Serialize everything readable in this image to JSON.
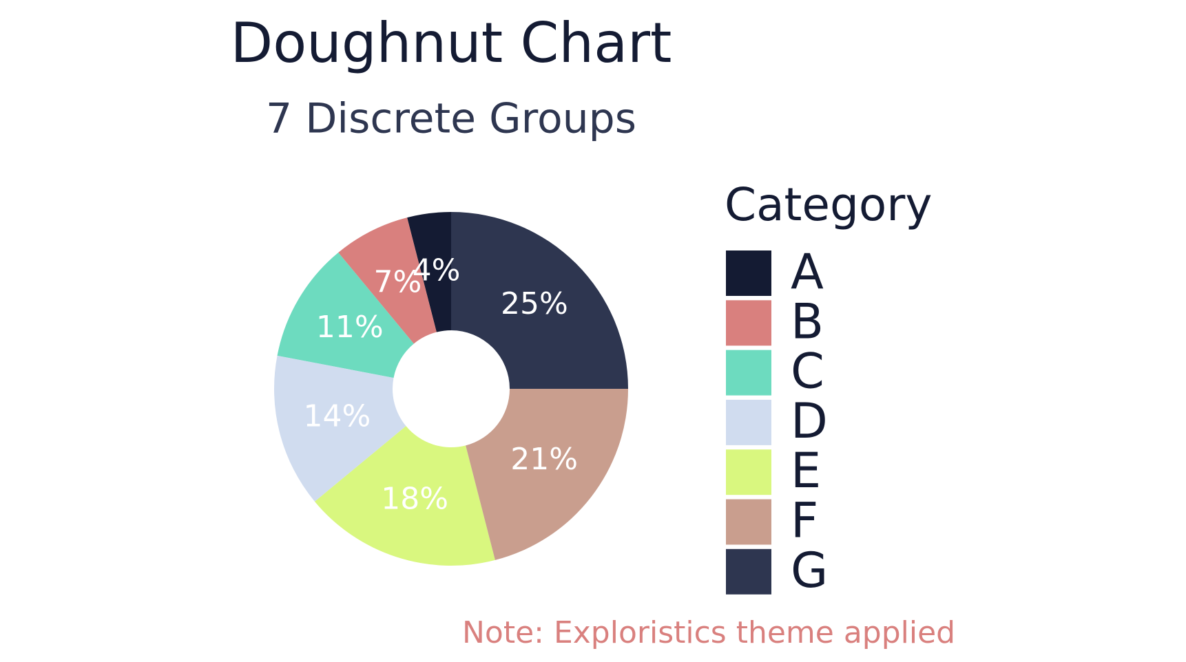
{
  "chart_data": {
    "type": "doughnut",
    "title": "Doughnut Chart",
    "subtitle": "7 Discrete Groups",
    "legend_title": "Category",
    "categories": [
      "A",
      "B",
      "C",
      "D",
      "E",
      "F",
      "G"
    ],
    "values": [
      4,
      7,
      11,
      14,
      18,
      21,
      25
    ],
    "value_labels": [
      "4%",
      "7%",
      "11%",
      "14%",
      "18%",
      "21%",
      "25%"
    ],
    "colors": [
      "#141b33",
      "#d9807e",
      "#6ddbbf",
      "#d0dcef",
      "#d9f77f",
      "#c99e8e",
      "#2e3650"
    ],
    "legend": "right",
    "annotation": "Note: Exploristics theme applied"
  }
}
